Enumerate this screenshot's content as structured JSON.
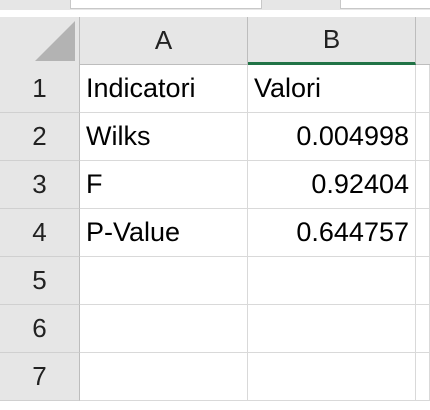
{
  "column_headers": [
    "A",
    "B"
  ],
  "row_headers": [
    "1",
    "2",
    "3",
    "4",
    "5",
    "6",
    "7"
  ],
  "rows": [
    {
      "a": "Indicatori",
      "b": "Valori"
    },
    {
      "a": "Wilks",
      "b": "0.004998"
    },
    {
      "a": "F",
      "b": "0.92404"
    },
    {
      "a": "P-Value",
      "b": "0.644757"
    },
    {
      "a": "",
      "b": ""
    },
    {
      "a": "",
      "b": ""
    },
    {
      "a": "",
      "b": ""
    }
  ],
  "colors": {
    "header_bg": "#e6e6e6",
    "selection_accent": "#217346",
    "gridline": "#d9d9d9"
  },
  "icons": {
    "select_all": "select-all-triangle-icon"
  }
}
